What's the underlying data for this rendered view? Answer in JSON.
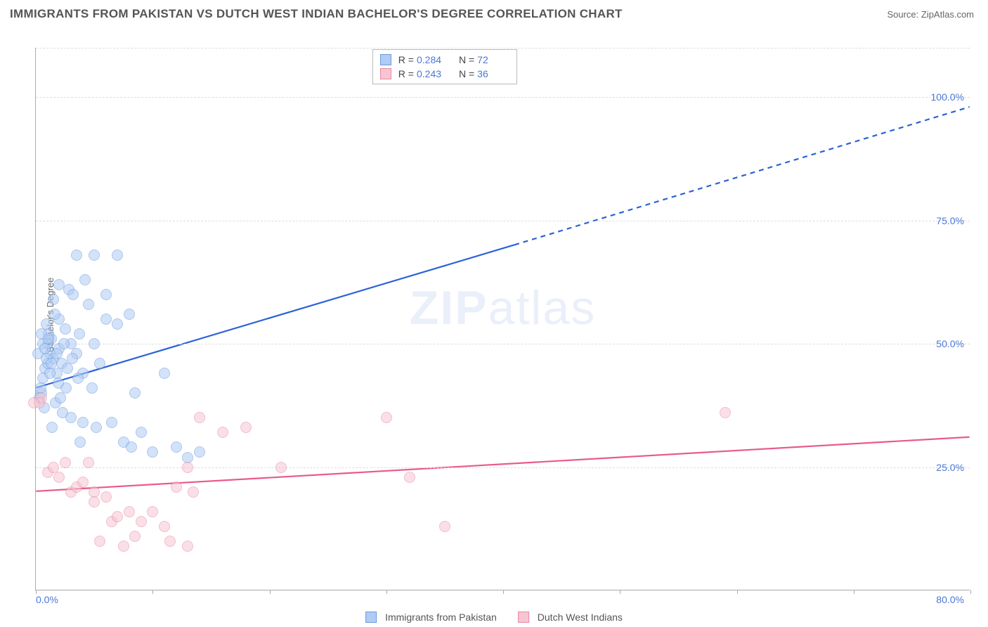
{
  "title": "IMMIGRANTS FROM PAKISTAN VS DUTCH WEST INDIAN BACHELOR'S DEGREE CORRELATION CHART",
  "source": "Source: ZipAtlas.com",
  "ylabel": "Bachelor's Degree",
  "watermark_a": "ZIP",
  "watermark_b": "atlas",
  "chart": {
    "type": "scatter",
    "xlim": [
      0,
      80
    ],
    "ylim": [
      0,
      110
    ],
    "ytick_values": [
      25,
      50,
      75,
      100
    ],
    "ytick_labels": [
      "25.0%",
      "50.0%",
      "75.0%",
      "100.0%"
    ],
    "xtick_values": [
      0,
      10,
      20,
      30,
      40,
      50,
      60,
      70,
      80
    ],
    "xtick_show_labels": {
      "0": "0.0%",
      "80": "80.0%"
    },
    "marker_radius": 8,
    "background": "#ffffff",
    "grid_color": "#dddddd",
    "series": [
      {
        "name": "Immigrants from Pakistan",
        "color_fill": "#aeccf4",
        "color_stroke": "#6f99dd",
        "fill_opacity": 0.55,
        "points": [
          [
            0.5,
            40
          ],
          [
            0.3,
            39
          ],
          [
            0.8,
            45
          ],
          [
            1,
            46
          ],
          [
            1.2,
            48
          ],
          [
            1,
            50
          ],
          [
            1.5,
            47
          ],
          [
            1.3,
            51
          ],
          [
            2,
            49
          ],
          [
            1.8,
            44
          ],
          [
            2.2,
            46
          ],
          [
            0.6,
            43
          ],
          [
            0.4,
            41
          ],
          [
            1.1,
            52
          ],
          [
            2.5,
            53
          ],
          [
            2,
            55
          ],
          [
            3,
            50
          ],
          [
            1.6,
            56
          ],
          [
            0.9,
            54
          ],
          [
            3.5,
            48
          ],
          [
            4,
            44
          ],
          [
            5,
            50
          ],
          [
            6,
            55
          ],
          [
            7,
            54
          ],
          [
            8,
            56
          ],
          [
            8.5,
            40
          ],
          [
            5.5,
            46
          ],
          [
            2.8,
            61
          ],
          [
            3.2,
            60
          ],
          [
            4.5,
            58
          ],
          [
            1.7,
            38
          ],
          [
            0.7,
            37
          ],
          [
            2.3,
            36
          ],
          [
            3,
            35
          ],
          [
            4,
            34
          ],
          [
            1.4,
            33
          ],
          [
            5.2,
            33
          ],
          [
            6.5,
            34
          ],
          [
            3.8,
            30
          ],
          [
            7.5,
            30
          ],
          [
            8.2,
            29
          ],
          [
            10,
            28
          ],
          [
            12,
            29
          ],
          [
            13,
            27
          ],
          [
            14,
            28
          ],
          [
            9,
            32
          ],
          [
            11,
            44
          ],
          [
            2.6,
            41
          ],
          [
            1.9,
            42
          ],
          [
            2.1,
            39
          ],
          [
            3.6,
            43
          ],
          [
            4.8,
            41
          ],
          [
            0.2,
            48
          ],
          [
            0.5,
            52
          ],
          [
            1.2,
            44
          ],
          [
            1.8,
            48
          ],
          [
            0.9,
            47
          ],
          [
            2.4,
            50
          ],
          [
            3.1,
            47
          ],
          [
            3.7,
            52
          ],
          [
            5,
            68
          ],
          [
            7,
            68
          ],
          [
            3.5,
            68
          ],
          [
            2,
            62
          ],
          [
            4.2,
            63
          ],
          [
            1.5,
            59
          ],
          [
            6,
            60
          ],
          [
            2.7,
            45
          ],
          [
            1.3,
            46
          ],
          [
            0.6,
            50
          ],
          [
            0.8,
            49
          ],
          [
            1.1,
            51
          ]
        ],
        "trend": {
          "x1": 0,
          "y1": 41,
          "x2_solid": 41,
          "y2_solid": 70,
          "x2": 80,
          "y2": 98,
          "stroke": "#2a62d8",
          "width": 2.2
        }
      },
      {
        "name": "Dutch West Indians",
        "color_fill": "#f7c5d2",
        "color_stroke": "#e689a4",
        "fill_opacity": 0.55,
        "points": [
          [
            0.5,
            39
          ],
          [
            0.3,
            38
          ],
          [
            -0.2,
            38
          ],
          [
            1,
            24
          ],
          [
            1.5,
            25
          ],
          [
            2,
            23
          ],
          [
            3,
            20
          ],
          [
            3.5,
            21
          ],
          [
            4,
            22
          ],
          [
            5,
            20
          ],
          [
            5,
            18
          ],
          [
            6,
            19
          ],
          [
            6.5,
            14
          ],
          [
            7,
            15
          ],
          [
            8,
            16
          ],
          [
            9,
            14
          ],
          [
            10,
            16
          ],
          [
            11,
            13
          ],
          [
            5.5,
            10
          ],
          [
            7.5,
            9
          ],
          [
            8.5,
            11
          ],
          [
            11.5,
            10
          ],
          [
            13,
            9
          ],
          [
            13,
            25
          ],
          [
            14,
            35
          ],
          [
            16,
            32
          ],
          [
            18,
            33
          ],
          [
            21,
            25
          ],
          [
            30,
            35
          ],
          [
            32,
            23
          ],
          [
            35,
            13
          ],
          [
            59,
            36
          ],
          [
            13.5,
            20
          ],
          [
            4.5,
            26
          ],
          [
            2.5,
            26
          ],
          [
            12,
            21
          ]
        ],
        "trend": {
          "x1": 0,
          "y1": 20,
          "x2": 80,
          "y2": 31,
          "stroke": "#e85a8a",
          "width": 2.2
        }
      }
    ],
    "stats_box": {
      "rows": [
        {
          "swatch_fill": "#aeccf4",
          "swatch_stroke": "#6f99dd",
          "R_label": "R =",
          "R": "0.284",
          "N_label": "N =",
          "N": "72"
        },
        {
          "swatch_fill": "#f7c5d2",
          "swatch_stroke": "#e689a4",
          "R_label": "R =",
          "R": "0.243",
          "N_label": "N =",
          "N": "36"
        }
      ]
    }
  }
}
